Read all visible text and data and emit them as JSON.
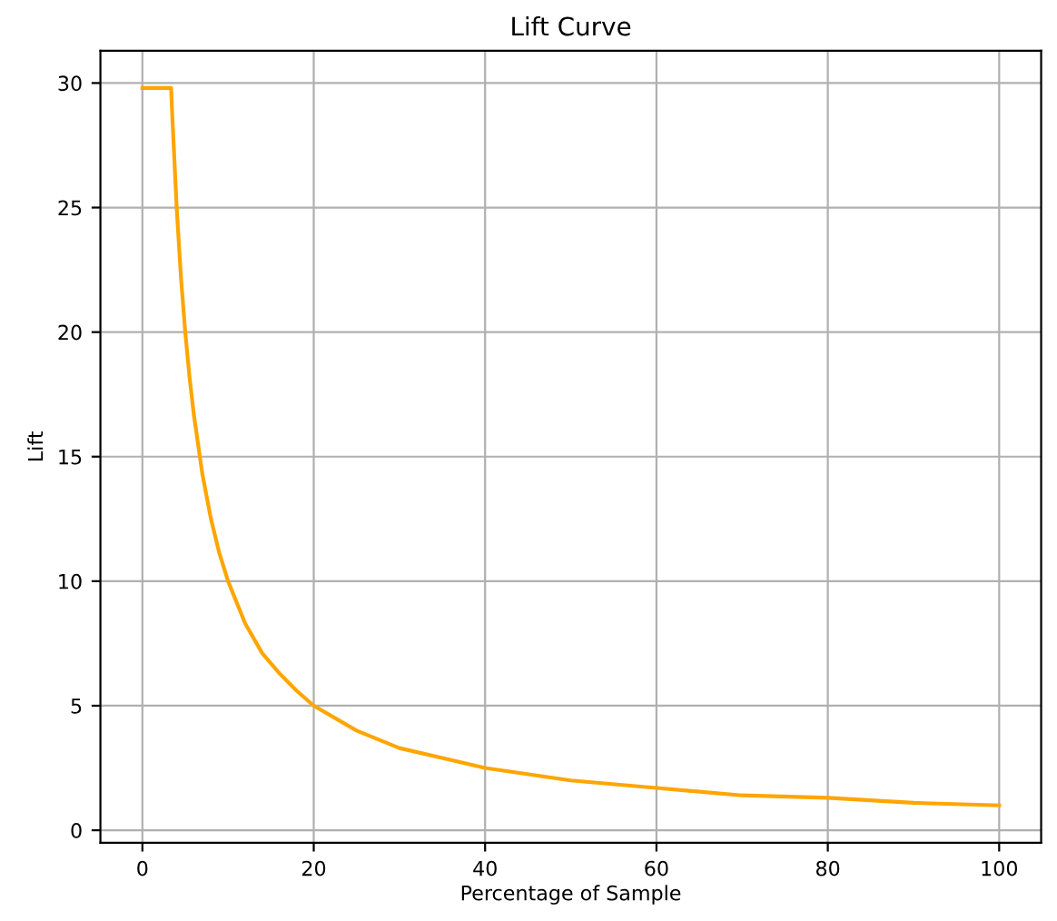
{
  "chart_data": {
    "type": "line",
    "title": "Lift Curve",
    "xlabel": "Percentage of Sample",
    "ylabel": "Lift",
    "series": [
      {
        "color": "#ffa500",
        "x": [
          0,
          1,
          2,
          3.35,
          3.5,
          4,
          4.5,
          5,
          5.5,
          6,
          7,
          8,
          9,
          10,
          12,
          14,
          16,
          18,
          20,
          25,
          30,
          35,
          40,
          50,
          60,
          70,
          80,
          90,
          100
        ],
        "values": [
          29.8,
          29.8,
          29.8,
          29.8,
          28.6,
          25.0,
          22.2,
          20.0,
          18.2,
          16.7,
          14.3,
          12.5,
          11.1,
          10.0,
          8.3,
          7.1,
          6.3,
          5.6,
          5.0,
          4.0,
          3.3,
          2.9,
          2.5,
          2.0,
          1.7,
          1.4,
          1.3,
          1.1,
          1.0
        ]
      }
    ],
    "xlim": [
      -4.9,
      104.9
    ],
    "ylim": [
      -0.5,
      31.3
    ],
    "xticks": [
      0,
      20,
      40,
      60,
      80,
      100
    ],
    "yticks": [
      0,
      5,
      10,
      15,
      20,
      25,
      30
    ],
    "grid": true
  }
}
